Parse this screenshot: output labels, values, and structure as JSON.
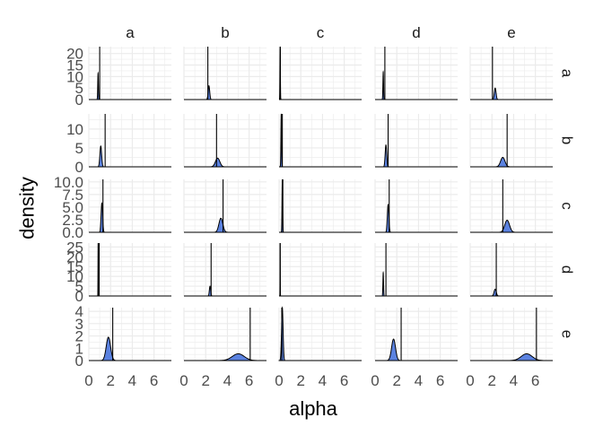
{
  "chart_data": {
    "type": "area",
    "description_free": true,
    "xlabel": "alpha",
    "ylabel": "density",
    "col_labels": [
      "a",
      "b",
      "c",
      "d",
      "e"
    ],
    "row_labels": [
      "a",
      "b",
      "c",
      "d",
      "e"
    ],
    "x_ticks": [
      0,
      2,
      4,
      6
    ],
    "xlim": [
      0,
      7.6
    ],
    "fill_color": "#5b82e0",
    "line_color": "#000000",
    "grid": true,
    "rows": [
      {
        "label": "a",
        "ylim": [
          0,
          23
        ],
        "y_ticks": [
          0,
          5,
          10,
          15,
          20
        ],
        "y_tick_labels": [
          "0",
          "5",
          "10",
          "15",
          "20"
        ],
        "panels": [
          {
            "peak_x": 0.85,
            "peak_y": 11.5,
            "width": 0.03,
            "vline": 1.0
          },
          {
            "peak_x": 2.3,
            "peak_y": 6.0,
            "width": 0.07,
            "vline": 2.2
          },
          {
            "peak_x": 0.1,
            "peak_y": 23,
            "width": 0.02,
            "vline": 0.12
          },
          {
            "peak_x": 0.75,
            "peak_y": 12.0,
            "width": 0.03,
            "vline": 0.9
          },
          {
            "peak_x": 2.3,
            "peak_y": 5.0,
            "width": 0.08,
            "vline": 2.05
          }
        ]
      },
      {
        "label": "b",
        "ylim": [
          0,
          14
        ],
        "y_ticks": [
          0,
          5,
          10
        ],
        "y_tick_labels": [
          "0",
          "5",
          "10"
        ],
        "panels": [
          {
            "peak_x": 1.1,
            "peak_y": 5.5,
            "width": 0.08,
            "vline": 1.5
          },
          {
            "peak_x": 3.1,
            "peak_y": 2.3,
            "width": 0.2,
            "vline": 3.0
          },
          {
            "peak_x": 0.2,
            "peak_y": 14,
            "width": 0.03,
            "vline": 0.3
          },
          {
            "peak_x": 1.0,
            "peak_y": 5.8,
            "width": 0.07,
            "vline": 1.2
          },
          {
            "peak_x": 3.0,
            "peak_y": 2.5,
            "width": 0.2,
            "vline": 3.4
          }
        ]
      },
      {
        "label": "c",
        "ylim": [
          0,
          10.5
        ],
        "y_ticks": [
          0,
          2.5,
          5.0,
          7.5,
          10.0
        ],
        "y_tick_labels": [
          "0.0",
          "2.5",
          "5.0",
          "7.5",
          "10.0"
        ],
        "panels": [
          {
            "peak_x": 1.2,
            "peak_y": 5.8,
            "width": 0.07,
            "vline": 1.3
          },
          {
            "peak_x": 3.4,
            "peak_y": 2.8,
            "width": 0.18,
            "vline": 3.6
          },
          {
            "peak_x": 0.3,
            "peak_y": 10.5,
            "width": 0.03,
            "vline": 0.35
          },
          {
            "peak_x": 1.2,
            "peak_y": 5.5,
            "width": 0.07,
            "vline": 1.3
          },
          {
            "peak_x": 3.4,
            "peak_y": 2.4,
            "width": 0.22,
            "vline": 3.0
          }
        ]
      },
      {
        "label": "d",
        "ylim": [
          0,
          27
        ],
        "y_ticks": [
          0,
          5,
          10,
          15,
          20,
          25
        ],
        "y_tick_labels": [
          "0",
          "5",
          "10",
          "15",
          "20",
          "25"
        ],
        "panels": [
          {
            "peak_x": 0.85,
            "peak_y": 27,
            "width": 0.01,
            "vline": 0.95
          },
          {
            "peak_x": 2.4,
            "peak_y": 5.0,
            "width": 0.06,
            "vline": 2.5
          },
          {
            "peak_x": 0.1,
            "peak_y": 27,
            "width": 0.01,
            "vline": 0.1
          },
          {
            "peak_x": 0.75,
            "peak_y": 12.0,
            "width": 0.03,
            "vline": 1.0
          },
          {
            "peak_x": 2.3,
            "peak_y": 3.5,
            "width": 0.1,
            "vline": 2.4
          }
        ]
      },
      {
        "label": "e",
        "ylim": [
          0,
          4.3
        ],
        "y_ticks": [
          0,
          1,
          2,
          3,
          4
        ],
        "y_tick_labels": [
          "0",
          "1",
          "2",
          "3",
          "4"
        ],
        "panels": [
          {
            "peak_x": 1.8,
            "peak_y": 1.9,
            "width": 0.2,
            "vline": 2.2
          },
          {
            "peak_x": 5.0,
            "peak_y": 0.55,
            "width": 0.55,
            "vline": 6.1
          },
          {
            "peak_x": 0.3,
            "peak_y": 4.3,
            "width": 0.07,
            "vline": 0.25
          },
          {
            "peak_x": 1.7,
            "peak_y": 1.75,
            "width": 0.18,
            "vline": 2.4
          },
          {
            "peak_x": 5.2,
            "peak_y": 0.55,
            "width": 0.5,
            "vline": 6.1
          }
        ]
      }
    ]
  }
}
